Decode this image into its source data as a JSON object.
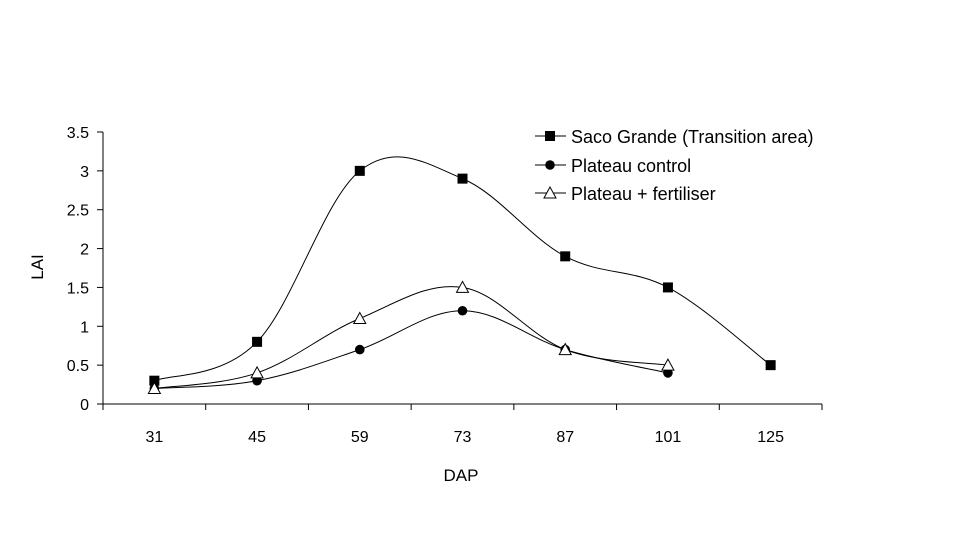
{
  "chart_data": {
    "type": "line",
    "title": "",
    "xlabel": "DAP",
    "ylabel": "LAI",
    "categories": [
      "31",
      "45",
      "59",
      "73",
      "87",
      "101",
      "125"
    ],
    "ylim": [
      0,
      3.5
    ],
    "yticks": [
      "0",
      "0.5",
      "1",
      "1.5",
      "2",
      "2.5",
      "3",
      "3.5"
    ],
    "grid": false,
    "legend_position": "top-right",
    "series": [
      {
        "name": "Saco Grande (Transition area)",
        "marker": "square",
        "color": "#000000",
        "values": [
          0.3,
          0.8,
          3.0,
          2.9,
          1.9,
          1.5,
          0.5
        ]
      },
      {
        "name": "Plateau control",
        "marker": "circle",
        "color": "#000000",
        "values": [
          0.2,
          0.3,
          0.7,
          1.2,
          0.7,
          0.4,
          null
        ]
      },
      {
        "name": "Plateau + fertiliser",
        "marker": "open-triangle",
        "color": "#000000",
        "values": [
          0.2,
          0.4,
          1.1,
          1.5,
          0.7,
          0.5,
          null
        ]
      }
    ]
  }
}
